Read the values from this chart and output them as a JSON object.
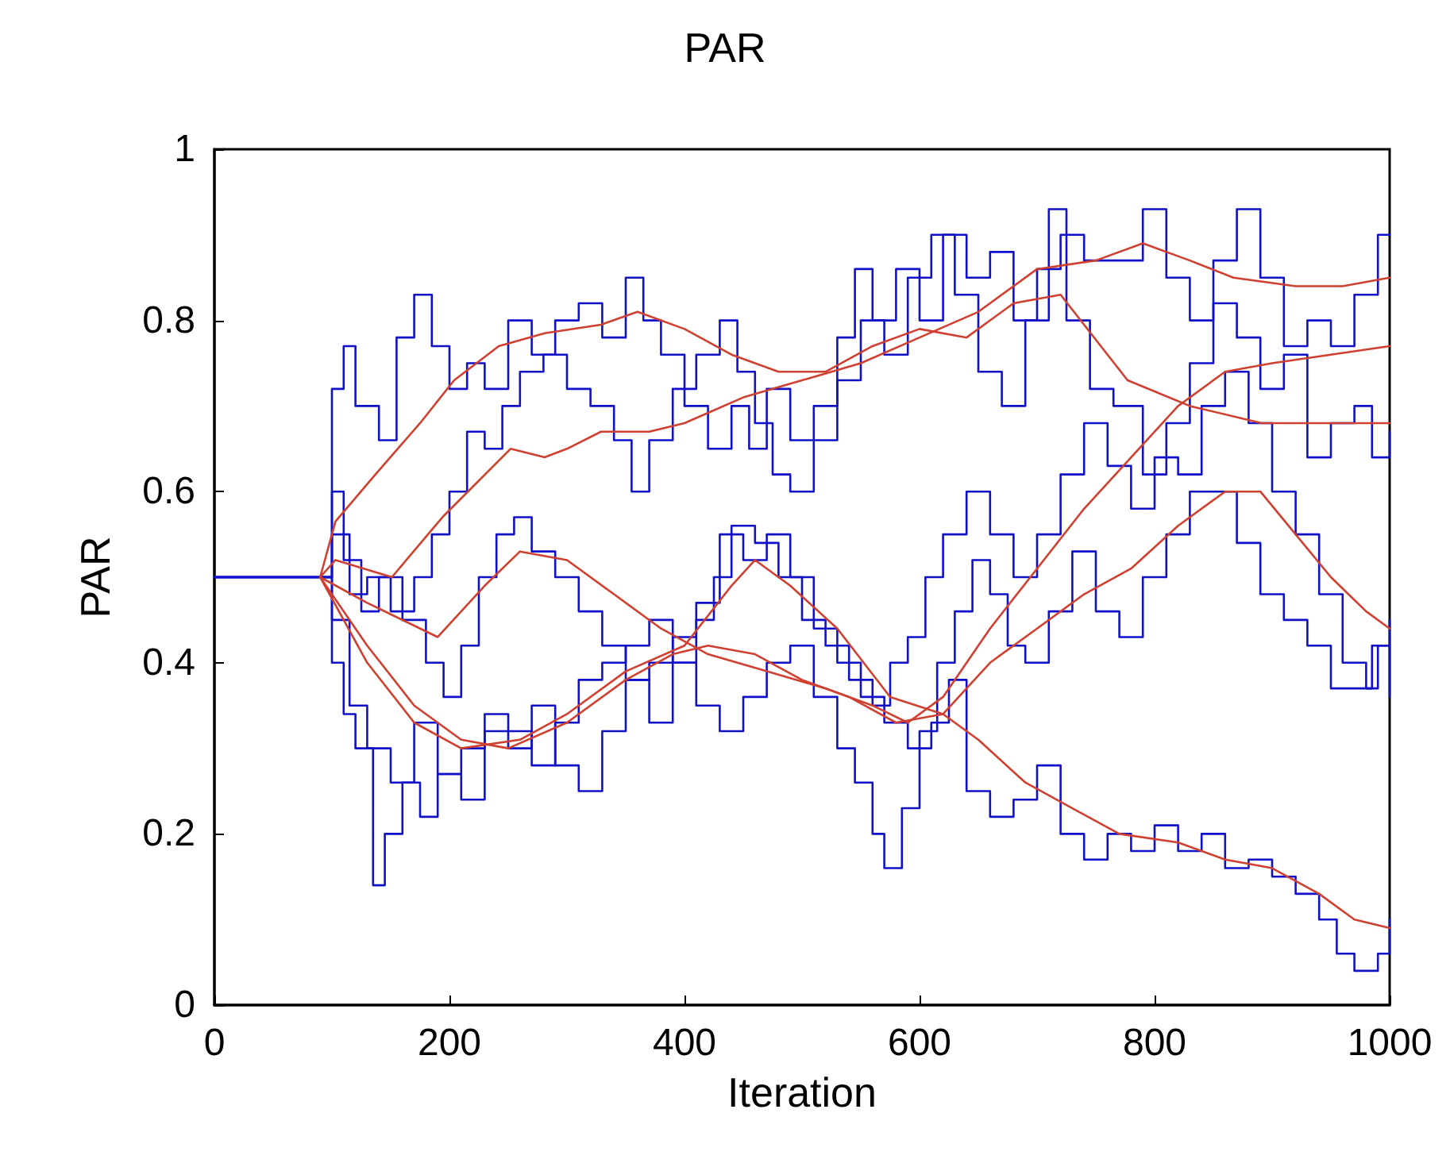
{
  "chart_data": {
    "type": "line",
    "title": "PAR",
    "xlabel": "Iteration",
    "ylabel": "PAR",
    "xlim": [
      0,
      1000
    ],
    "xticks": [
      0,
      200,
      400,
      600,
      800,
      1000
    ],
    "ylim": [
      0,
      1
    ],
    "yticks": [
      0,
      0.2,
      0.4,
      0.6,
      0.8,
      1
    ],
    "grid": false,
    "marker": "none",
    "line_style": "solid",
    "series": [
      {
        "type": "step",
        "color": "#1010c8",
        "x": [
          0,
          90,
          100,
          110,
          120,
          140,
          155,
          170,
          185,
          200,
          215,
          230,
          250,
          270,
          290,
          310,
          330,
          350,
          365,
          380,
          400,
          420,
          440,
          455,
          470,
          490,
          510,
          530,
          545,
          560,
          580,
          600,
          620,
          640,
          660,
          680,
          700,
          720,
          740,
          760,
          790,
          810,
          830,
          850,
          870,
          890,
          910,
          930,
          950,
          970,
          990,
          1000
        ],
        "values": [
          0.5,
          0.5,
          0.72,
          0.77,
          0.7,
          0.66,
          0.78,
          0.83,
          0.77,
          0.72,
          0.75,
          0.72,
          0.8,
          0.76,
          0.8,
          0.82,
          0.78,
          0.85,
          0.8,
          0.76,
          0.7,
          0.65,
          0.7,
          0.65,
          0.72,
          0.66,
          0.7,
          0.78,
          0.86,
          0.8,
          0.86,
          0.8,
          0.9,
          0.85,
          0.88,
          0.8,
          0.86,
          0.9,
          0.87,
          0.87,
          0.93,
          0.85,
          0.8,
          0.87,
          0.93,
          0.85,
          0.77,
          0.8,
          0.77,
          0.83,
          0.9,
          0.9
        ]
      },
      {
        "type": "step",
        "color": "#1010c8",
        "x": [
          0,
          90,
          100,
          115,
          130,
          150,
          170,
          185,
          200,
          215,
          230,
          245,
          260,
          280,
          300,
          320,
          340,
          355,
          370,
          390,
          410,
          430,
          445,
          460,
          475,
          490,
          510,
          530,
          550,
          570,
          590,
          610,
          630,
          650,
          670,
          690,
          710,
          725,
          745,
          765,
          790,
          810,
          830,
          850,
          870,
          890,
          910,
          930,
          950,
          970,
          985,
          1000
        ],
        "values": [
          0.5,
          0.5,
          0.55,
          0.48,
          0.5,
          0.46,
          0.5,
          0.55,
          0.6,
          0.67,
          0.65,
          0.7,
          0.74,
          0.76,
          0.72,
          0.7,
          0.66,
          0.6,
          0.66,
          0.72,
          0.76,
          0.8,
          0.74,
          0.68,
          0.62,
          0.6,
          0.66,
          0.73,
          0.8,
          0.76,
          0.85,
          0.9,
          0.83,
          0.74,
          0.7,
          0.8,
          0.93,
          0.8,
          0.72,
          0.7,
          0.62,
          0.68,
          0.75,
          0.82,
          0.78,
          0.72,
          0.76,
          0.64,
          0.68,
          0.7,
          0.64,
          0.67
        ]
      },
      {
        "type": "step",
        "color": "#1010c8",
        "x": [
          0,
          90,
          100,
          110,
          125,
          140,
          160,
          180,
          195,
          210,
          225,
          240,
          255,
          270,
          290,
          310,
          330,
          350,
          370,
          390,
          410,
          425,
          440,
          460,
          480,
          500,
          520,
          540,
          560,
          575,
          590,
          605,
          620,
          640,
          660,
          680,
          700,
          720,
          740,
          760,
          780,
          800,
          820,
          840,
          860,
          880,
          900,
          920,
          940,
          960,
          980,
          990,
          1000
        ],
        "values": [
          0.5,
          0.5,
          0.6,
          0.52,
          0.46,
          0.5,
          0.45,
          0.4,
          0.36,
          0.42,
          0.5,
          0.55,
          0.57,
          0.53,
          0.5,
          0.46,
          0.42,
          0.38,
          0.4,
          0.43,
          0.45,
          0.5,
          0.56,
          0.54,
          0.5,
          0.45,
          0.42,
          0.38,
          0.35,
          0.4,
          0.43,
          0.5,
          0.55,
          0.6,
          0.55,
          0.5,
          0.55,
          0.62,
          0.68,
          0.63,
          0.58,
          0.64,
          0.62,
          0.7,
          0.74,
          0.68,
          0.6,
          0.55,
          0.48,
          0.4,
          0.37,
          0.42,
          0.45
        ]
      },
      {
        "type": "step",
        "color": "#1010c8",
        "x": [
          0,
          90,
          100,
          110,
          120,
          135,
          145,
          160,
          175,
          190,
          210,
          230,
          250,
          270,
          290,
          310,
          330,
          350,
          370,
          390,
          410,
          430,
          450,
          470,
          490,
          510,
          530,
          545,
          560,
          570,
          585,
          600,
          615,
          630,
          645,
          660,
          675,
          690,
          710,
          730,
          750,
          770,
          790,
          810,
          830,
          850,
          870,
          890,
          910,
          930,
          950,
          970,
          985,
          1000
        ],
        "values": [
          0.5,
          0.5,
          0.4,
          0.34,
          0.3,
          0.14,
          0.2,
          0.26,
          0.22,
          0.27,
          0.3,
          0.34,
          0.32,
          0.28,
          0.33,
          0.38,
          0.4,
          0.42,
          0.45,
          0.4,
          0.35,
          0.32,
          0.36,
          0.4,
          0.42,
          0.36,
          0.3,
          0.26,
          0.2,
          0.16,
          0.23,
          0.32,
          0.4,
          0.46,
          0.52,
          0.48,
          0.42,
          0.4,
          0.46,
          0.53,
          0.46,
          0.43,
          0.5,
          0.55,
          0.6,
          0.6,
          0.54,
          0.48,
          0.45,
          0.42,
          0.37,
          0.37,
          0.42,
          0.36
        ]
      },
      {
        "type": "step",
        "color": "#1010c8",
        "x": [
          0,
          90,
          100,
          115,
          130,
          150,
          170,
          190,
          210,
          230,
          250,
          270,
          290,
          310,
          330,
          350,
          370,
          390,
          410,
          430,
          450,
          470,
          490,
          510,
          530,
          550,
          570,
          590,
          610,
          625,
          640,
          660,
          680,
          700,
          720,
          740,
          760,
          780,
          800,
          820,
          840,
          860,
          880,
          900,
          920,
          940,
          955,
          970,
          990,
          1000
        ],
        "values": [
          0.5,
          0.5,
          0.45,
          0.35,
          0.3,
          0.26,
          0.33,
          0.27,
          0.24,
          0.32,
          0.3,
          0.35,
          0.28,
          0.25,
          0.32,
          0.38,
          0.33,
          0.4,
          0.47,
          0.55,
          0.52,
          0.55,
          0.5,
          0.44,
          0.4,
          0.36,
          0.33,
          0.3,
          0.33,
          0.38,
          0.25,
          0.22,
          0.24,
          0.28,
          0.2,
          0.17,
          0.2,
          0.18,
          0.21,
          0.18,
          0.2,
          0.16,
          0.17,
          0.15,
          0.13,
          0.1,
          0.06,
          0.04,
          0.06,
          0.1
        ]
      },
      {
        "color": "#d04030",
        "x": [
          90,
          103,
          137,
          175,
          204,
          242,
          281,
          329,
          360,
          400,
          440,
          480,
          520,
          560,
          600,
          640,
          680,
          720,
          777,
          830,
          891,
          950,
          1000
        ],
        "values": [
          0.5,
          0.565,
          0.62,
          0.68,
          0.73,
          0.77,
          0.785,
          0.795,
          0.81,
          0.79,
          0.76,
          0.74,
          0.74,
          0.77,
          0.79,
          0.78,
          0.82,
          0.83,
          0.73,
          0.7,
          0.68,
          0.68,
          0.68
        ]
      },
      {
        "color": "#d04030",
        "x": [
          90,
          103,
          151,
          194,
          252,
          281,
          300,
          329,
          370,
          400,
          450,
          500,
          550,
          600,
          650,
          700,
          750,
          790,
          830,
          867,
          920,
          960,
          1000
        ],
        "values": [
          0.5,
          0.52,
          0.5,
          0.57,
          0.65,
          0.64,
          0.65,
          0.67,
          0.67,
          0.68,
          0.71,
          0.73,
          0.75,
          0.78,
          0.81,
          0.86,
          0.87,
          0.89,
          0.87,
          0.85,
          0.84,
          0.84,
          0.85
        ]
      },
      {
        "color": "#d04030",
        "x": [
          90,
          130,
          190,
          230,
          260,
          300,
          340,
          380,
          420,
          470,
          520,
          560,
          590,
          620,
          660,
          700,
          740,
          780,
          820,
          860,
          900,
          950,
          1000
        ],
        "values": [
          0.5,
          0.47,
          0.43,
          0.49,
          0.53,
          0.52,
          0.48,
          0.44,
          0.41,
          0.39,
          0.37,
          0.35,
          0.33,
          0.36,
          0.44,
          0.51,
          0.58,
          0.64,
          0.7,
          0.74,
          0.75,
          0.76,
          0.77
        ]
      },
      {
        "color": "#d04030",
        "x": [
          90,
          130,
          170,
          210,
          250,
          300,
          350,
          390,
          420,
          460,
          500,
          540,
          580,
          620,
          660,
          700,
          740,
          780,
          820,
          860,
          890,
          920,
          950,
          980,
          1000
        ],
        "values": [
          0.5,
          0.42,
          0.35,
          0.31,
          0.3,
          0.33,
          0.38,
          0.41,
          0.42,
          0.41,
          0.38,
          0.36,
          0.33,
          0.34,
          0.4,
          0.44,
          0.48,
          0.51,
          0.56,
          0.6,
          0.6,
          0.55,
          0.5,
          0.46,
          0.44
        ]
      },
      {
        "color": "#d04030",
        "x": [
          90,
          130,
          170,
          210,
          260,
          300,
          350,
          400,
          440,
          460,
          490,
          530,
          575,
          620,
          650,
          690,
          730,
          770,
          820,
          860,
          900,
          940,
          970,
          1000
        ],
        "values": [
          0.5,
          0.4,
          0.33,
          0.3,
          0.31,
          0.34,
          0.39,
          0.42,
          0.49,
          0.52,
          0.49,
          0.44,
          0.36,
          0.34,
          0.31,
          0.26,
          0.23,
          0.2,
          0.19,
          0.17,
          0.16,
          0.13,
          0.1,
          0.09
        ]
      }
    ]
  }
}
